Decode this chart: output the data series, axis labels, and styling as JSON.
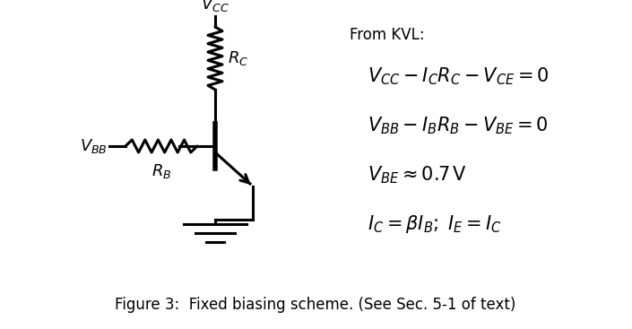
{
  "background_color": "#ffffff",
  "figure_caption": "Figure 3:  Fixed biasing scheme. (See Sec. 5-1 of text)",
  "caption_fontsize": 12,
  "kvl_label": "From KVL:",
  "kvl_label_fontsize": 12,
  "equations": [
    "$V_{CC} - I_C R_C - V_{CE} = 0$",
    "$V_{BB} - I_B R_B - V_{BE} = 0$",
    "$V_{BE} \\approx 0.7\\,\\mathrm{V}$",
    "$I_C = \\beta I_B;\\; I_E = I_C$"
  ],
  "eq_fontsize": 15,
  "circuit": {
    "vcc_label": "$V_{CC}$",
    "rc_label": "$R_C$",
    "vbb_label": "$V_{BB}$",
    "rb_label": "$R_B$",
    "line_color": "#000000",
    "line_width": 2.2
  }
}
